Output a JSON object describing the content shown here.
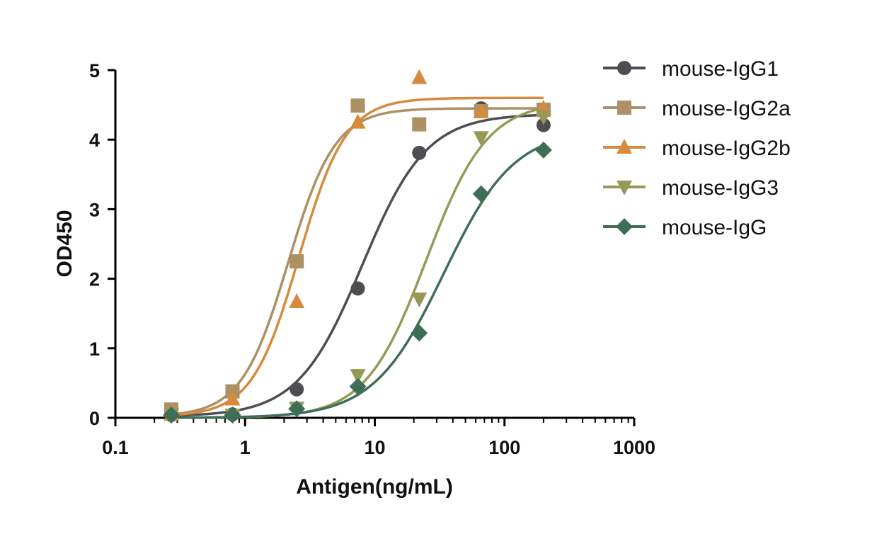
{
  "chart_data": {
    "type": "scatter",
    "title": "",
    "xlabel": "Antigen(ng/mL)",
    "ylabel": "OD450",
    "xscale": "log",
    "xlim": [
      0.1,
      1000
    ],
    "ylim": [
      0,
      5
    ],
    "xticks": [
      "0.1",
      "1",
      "10",
      "100",
      "1000"
    ],
    "yticks": [
      "0",
      "1",
      "2",
      "3",
      "4",
      "5"
    ],
    "grid": false,
    "legend_position": "right",
    "x": [
      0.27,
      0.8,
      2.5,
      7.4,
      22,
      66,
      200
    ],
    "series": [
      {
        "name": "mouse-IgG1",
        "color": "#4d4d52",
        "marker": "circle",
        "values": [
          0.04,
          0.05,
          0.41,
          1.86,
          3.81,
          4.45,
          4.21
        ],
        "fit": {
          "bottom": 0.02,
          "top": 4.37,
          "ec50": 8.0,
          "hill": 1.75
        }
      },
      {
        "name": "mouse-IgG2a",
        "color": "#ad9063",
        "marker": "square",
        "values": [
          0.12,
          0.38,
          2.25,
          4.49,
          4.22,
          4.41,
          4.43
        ],
        "fit": {
          "bottom": 0.02,
          "top": 4.45,
          "ec50": 2.15,
          "hill": 2.4
        }
      },
      {
        "name": "mouse-IgG2b",
        "color": "#d88a3c",
        "marker": "triangle-up",
        "values": [
          0.05,
          0.27,
          1.67,
          4.25,
          4.89,
          4.4,
          4.45
        ],
        "fit": {
          "bottom": 0.02,
          "top": 4.6,
          "ec50": 2.6,
          "hill": 2.4
        }
      },
      {
        "name": "mouse-IgG3",
        "color": "#969a56",
        "marker": "triangle-down",
        "values": [
          0.05,
          0.04,
          0.14,
          0.61,
          1.71,
          4.03,
          4.33
        ],
        "fit": {
          "bottom": 0.0,
          "top": 4.55,
          "ec50": 25.0,
          "hill": 1.85
        }
      },
      {
        "name": "mouse-IgG",
        "color": "#3f6e57",
        "marker": "diamond",
        "values": [
          0.04,
          0.04,
          0.13,
          0.45,
          1.22,
          3.22,
          3.85
        ],
        "fit": {
          "bottom": 0.0,
          "top": 4.15,
          "ec50": 34.0,
          "hill": 1.6
        }
      }
    ]
  }
}
